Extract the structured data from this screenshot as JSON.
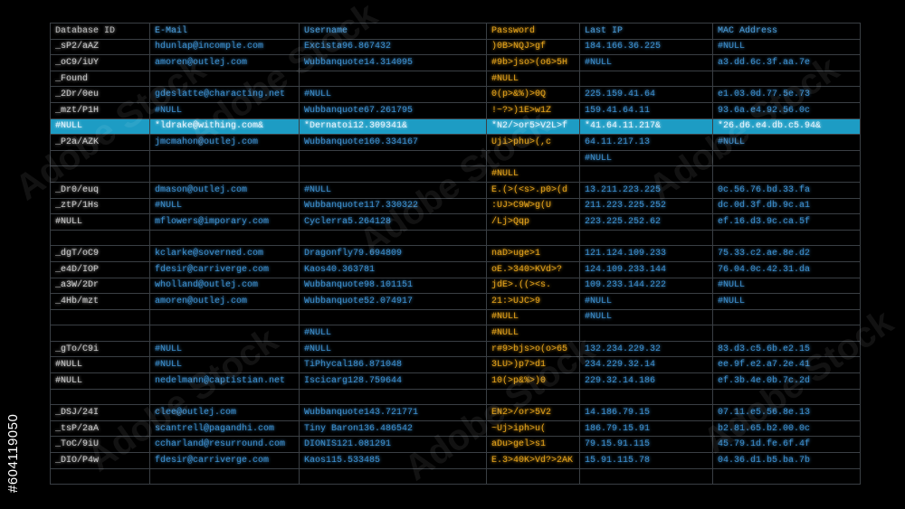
{
  "columns": [
    "Database ID",
    "E-Mail",
    "Username",
    "Password",
    "Last IP",
    "MAC Address"
  ],
  "highlight_row": 5,
  "colors": {
    "id": "#c8c8c8",
    "blue": "#3d8fce",
    "password": "#e3a21c",
    "highlight": "#1d9cc4",
    "grid": "#3a3f44"
  },
  "rows": [
    [
      "_sP2/aAZ",
      "hdunlap@incomple.com",
      "Excista96.867432",
      ")0B>NQJ>gf",
      "184.166.36.225",
      "#NULL"
    ],
    [
      "_oC9/iUY",
      "amoren@outlej.com",
      "Wubbanquote14.314095",
      "#9b>jso>(o6>5H",
      "#NULL",
      "a3.dd.6c.3f.aa.7e"
    ],
    [
      "_Found",
      "",
      "",
      "#NULL",
      "",
      ""
    ],
    [
      "_2Dr/0eu",
      "gdeslatte@characting.net",
      "#NULL",
      "0(p>&%)>0Q",
      "225.159.41.64",
      "e1.03.0d.77.5e.73"
    ],
    [
      "_mzt/P1H",
      "#NULL",
      "Wubbanquote67.261795",
      "!~?>)1E>w1Z",
      "159.41.64.11",
      "93.6a.e4.92.56.0c"
    ],
    [
      "#NULL",
      "*ldrake@withing.com&",
      "*Dernatoi12.309341&",
      "*N2/>or5>V2L>f",
      "*41.64.11.217&",
      "*26.d6.e4.db.c5.94&"
    ],
    [
      "_P2a/AZK",
      "jmcmahon@outlej.com",
      "Wubbanquote160.334167",
      "Uji>phu>(,c",
      "64.11.217.13",
      "#NULL"
    ],
    [
      "",
      "",
      "",
      "",
      "#NULL",
      ""
    ],
    [
      "",
      "",
      "",
      "#NULL",
      "",
      ""
    ],
    [
      "_Dr0/euq",
      "dmason@outlej.com",
      "#NULL",
      "E.(>(<s>.p0>(d",
      "13.211.223.225",
      "0c.56.76.bd.33.fa"
    ],
    [
      "_ztP/1Hs",
      "#NULL",
      "Wubbanquote117.330322",
      ":UJ>C9W>g(U",
      "211.223.225.252",
      "dc.0d.3f.db.9c.a1"
    ],
    [
      "#NULL",
      "mflowers@imporary.com",
      "Cyclerra5.264128",
      "/Lj>Qqp",
      "223.225.252.62",
      "ef.16.d3.9c.ca.5f"
    ],
    [
      "",
      "",
      "",
      "",
      "",
      ""
    ],
    [
      "_dgT/oC9",
      "kclarke@soverned.com",
      "Dragonfly79.694809",
      "naD>uge>1",
      "121.124.109.233",
      "75.33.c2.ae.8e.d2"
    ],
    [
      "_e4D/IOP",
      "fdesir@carriverge.com",
      "Kaos40.363781",
      "oE.>340>KVd>?",
      "124.109.233.144",
      "76.04.0c.42.31.da"
    ],
    [
      "_a3W/2Dr",
      "wholland@outlej.com",
      "Wubbanquote98.101151",
      "jdE>.((><s.",
      "109.233.144.222",
      "#NULL"
    ],
    [
      "_4Hb/mzt",
      "amoren@outlej.com",
      "Wubbanquote52.074917",
      "21:>UJC>9",
      "#NULL",
      "#NULL"
    ],
    [
      "",
      "",
      "",
      "#NULL",
      "#NULL",
      ""
    ],
    [
      "",
      "",
      "#NULL",
      "#NULL",
      "",
      ""
    ],
    [
      "_gTo/C9i",
      "#NULL",
      "#NULL",
      "r#9>bjs>o(o>65",
      "132.234.229.32",
      "83.d3.c5.6b.e2.15"
    ],
    [
      "#NULL",
      "#NULL",
      "TiPhycal186.871048",
      "3LU>)p7>d1",
      "234.229.32.14",
      "ee.9f.e2.a7.2e.41"
    ],
    [
      "#NULL",
      "nedelmann@captistian.net",
      "Iscicarg128.759644",
      "10(>p&%>)0",
      "229.32.14.186",
      "ef.3b.4e.0b.7c.2d"
    ],
    [
      "",
      "",
      "",
      "",
      "",
      ""
    ],
    [
      "_DSJ/24I",
      "clee@outlej.com",
      "Wubbanquote143.721771",
      "EN2>/or>5V2",
      "14.186.79.15",
      "07.11.e5.56.8e.13"
    ],
    [
      "_tsP/2aA",
      "scantrell@pagandhi.com",
      "Tiny Baron136.486542",
      "~Uj>iph>u(",
      "186.79.15.91",
      "b2.81.65.b2.00.0c"
    ],
    [
      "_ToC/9iU",
      "ccharland@resurround.com",
      "DIONIS121.081291",
      "aDu>gel>s1",
      "79.15.91.115",
      "45.79.1d.fe.6f.4f"
    ],
    [
      "_DIO/P4w",
      "fdesir@carriverge.com",
      "Kaos115.533485",
      "E.3>40K>Vd?>2AK",
      "15.91.115.78",
      "04.36.d1.b5.ba.7b"
    ],
    [
      "",
      "",
      "",
      "",
      "",
      ""
    ]
  ],
  "side_label": "#604119050",
  "watermark": "Adobe Stock"
}
